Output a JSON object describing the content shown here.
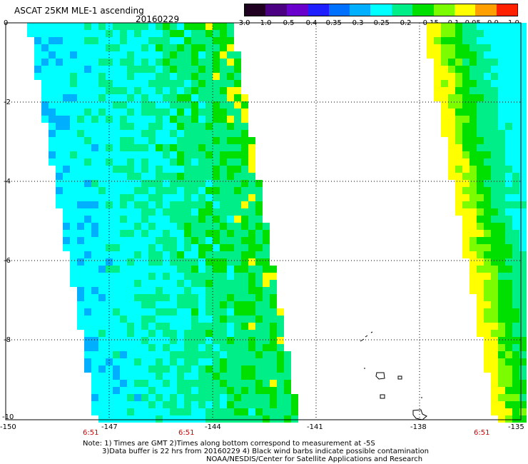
{
  "header": {
    "title": "ASCAT 25KM MLE-1 ascending",
    "date": "20160229"
  },
  "colorbar": {
    "labels": [
      "-3.0",
      "-1.0",
      "-0.5",
      "-0.4",
      "-0.35",
      "-0.3",
      "-0.25",
      "-0.2",
      "-0.15",
      "-0.1",
      "-0.05",
      "0.0",
      "1.0"
    ],
    "colors": [
      "#200020",
      "#4b0082",
      "#6a00cc",
      "#1e1eff",
      "#0070ff",
      "#00b0ff",
      "#00ffff",
      "#00ee88",
      "#00e000",
      "#7cfc00",
      "#ffff00",
      "#ffa000",
      "#ff2000"
    ]
  },
  "axes": {
    "x_ticks": [
      "-150",
      "-147",
      "-144",
      "-141",
      "-138",
      "-135"
    ],
    "y_ticks": [
      "0",
      "-2",
      "-4",
      "-6",
      "-8",
      "-10"
    ]
  },
  "times": [
    "6:51",
    "6:51",
    "6:51"
  ],
  "notes": [
    "Note: 1) Times are GMT 2)Times along bottom correspond to measurement at -5S",
    "3)Data buffer is 22 hrs from 20160229 4) Black wind barbs indicate possible contamination",
    "NOAA/NESDIS/Center for Satellite Applications and Research"
  ]
}
